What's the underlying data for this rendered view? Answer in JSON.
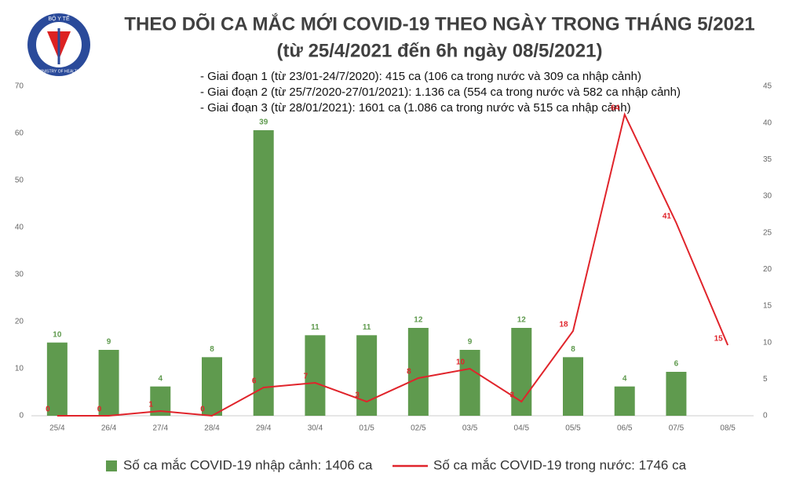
{
  "logo": {
    "top": "BỘ Y TẾ",
    "bottom": "MINISTRY OF HEALTH"
  },
  "chart_data": {
    "type": "combo",
    "title": "THEO DÕI CA MẮC MỚI COVID-19 THEO NGÀY TRONG THÁNG 5/2021",
    "subtitle": "(từ 25/4/2021 đến 6h ngày 08/5/2021)",
    "annotations": [
      "- Giai đoạn 1 (từ 23/01-24/7/2020): 415 ca (106 ca trong nước và 309 ca nhập cảnh)",
      "- Giai đoạn 2 (từ 25/7/2020-27/01/2021): 1.136 ca (554 ca trong nước và 582 ca nhập cảnh)",
      "- Giai đoạn 3 (từ 28/01/2021): 1601 ca (1.086 ca trong nước và 515 ca nhập cảnh)"
    ],
    "categories": [
      "25/4",
      "26/4",
      "27/4",
      "28/4",
      "29/4",
      "30/4",
      "01/5",
      "02/5",
      "03/5",
      "04/5",
      "05/5",
      "06/5",
      "07/5",
      "08/5"
    ],
    "series": [
      {
        "name": "Số ca mắc COVID-19 nhập cảnh: 1406 ca",
        "type": "bar",
        "axis": "y2",
        "color": "#5f9a4e",
        "values": [
          10,
          9,
          4,
          8,
          39,
          11,
          11,
          12,
          9,
          12,
          8,
          4,
          6,
          null
        ]
      },
      {
        "name": "Số ca mắc COVID-19 trong nước: 1746 ca",
        "type": "line",
        "color": "#e0242b",
        "values": [
          0,
          0,
          1,
          0,
          6,
          7,
          3,
          8,
          10,
          3,
          18,
          64,
          41,
          15
        ]
      }
    ],
    "ylim": [
      0,
      70
    ],
    "yticks": [
      0,
      10,
      20,
      30,
      40,
      50,
      60,
      70
    ],
    "y2lim": [
      0,
      45
    ],
    "y2ticks": [
      0,
      5,
      10,
      15,
      20,
      25,
      30,
      35,
      40,
      45
    ]
  }
}
